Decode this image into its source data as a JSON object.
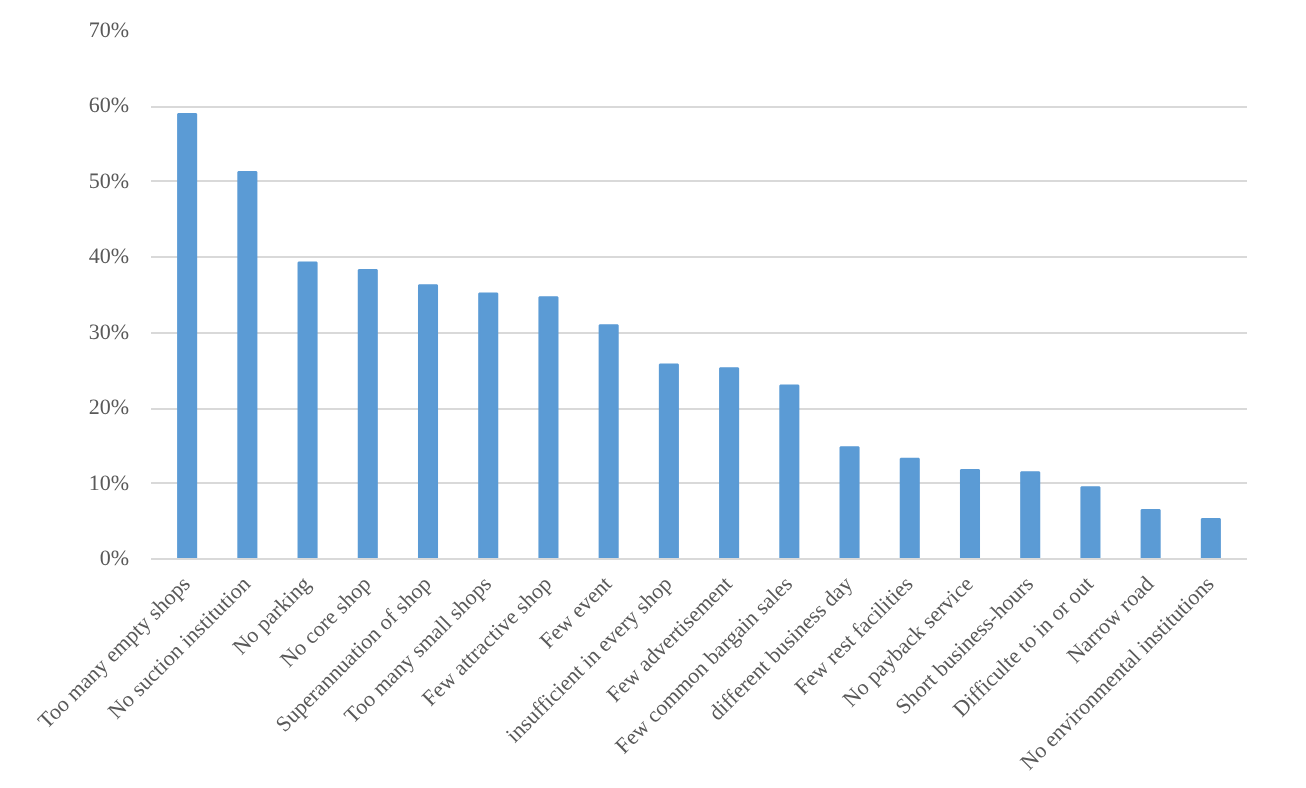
{
  "chart_data": {
    "type": "bar",
    "categories": [
      "Too many empty shops",
      "No suction institution",
      "No parking",
      "No core shop",
      "Superannuation of shop",
      "Too many small shops",
      "Few attractive shop",
      "Few event",
      "insufficient in every shop",
      "Few advertisement",
      "Few common bargain sales",
      "different business day",
      "Few rest facilities",
      "No payback service",
      "Short business-hours",
      "Difficulte to in or out",
      "Narrow road",
      "No environmental institutions"
    ],
    "values": [
      59,
      51.3,
      39.3,
      38.3,
      36.3,
      35.2,
      34.7,
      31,
      25.8,
      25.3,
      23,
      14.8,
      13.3,
      11.8,
      11.5,
      9.5,
      6.5,
      5.3
    ],
    "color": "#5b9bd5",
    "ylim": [
      0,
      70
    ],
    "yticks": [
      {
        "value": 0,
        "label": "0%"
      },
      {
        "value": 10,
        "label": "10%"
      },
      {
        "value": 20,
        "label": "20%"
      },
      {
        "value": 30,
        "label": "30%"
      },
      {
        "value": 40,
        "label": "40%"
      },
      {
        "value": 50,
        "label": "50%"
      },
      {
        "value": 60,
        "label": "60%"
      },
      {
        "value": 70,
        "label": "70%"
      }
    ],
    "grid": "y"
  }
}
